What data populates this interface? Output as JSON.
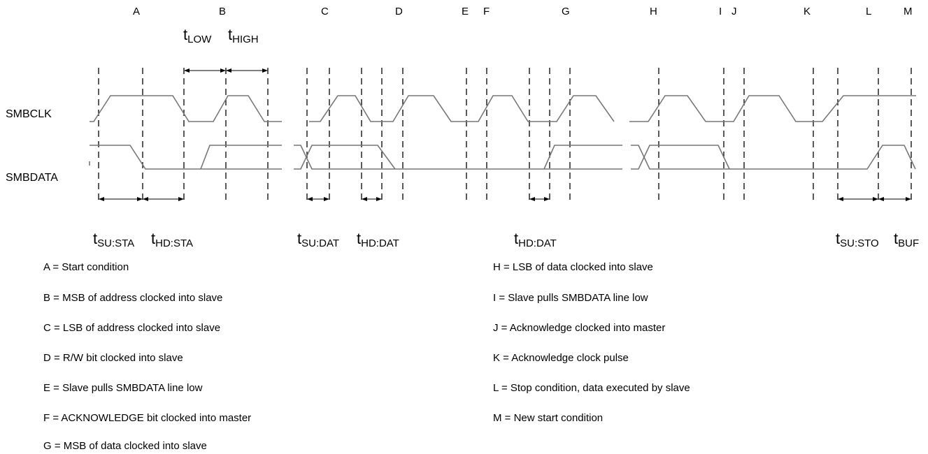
{
  "signals": {
    "clock": "SMBCLK",
    "data": "SMBDATA"
  },
  "event_letters": [
    "A",
    "B",
    "C",
    "D",
    "E",
    "F",
    "G",
    "H",
    "I",
    "J",
    "K",
    "L",
    "M"
  ],
  "timing_labels": [
    {
      "id": "t-low",
      "base": "t",
      "sub": "LOW"
    },
    {
      "id": "t-high",
      "base": "t",
      "sub": "HIGH"
    },
    {
      "id": "t-su-sta",
      "base": "t",
      "sub": "SU:STA"
    },
    {
      "id": "t-hd-sta",
      "base": "t",
      "sub": "HD:STA"
    },
    {
      "id": "t-su-dat",
      "base": "t",
      "sub": "SU:DAT"
    },
    {
      "id": "t-hd-dat-1",
      "base": "t",
      "sub": "HD:DAT"
    },
    {
      "id": "t-hd-dat-2",
      "base": "t",
      "sub": "HD:DAT"
    },
    {
      "id": "t-su-sto",
      "base": "t",
      "sub": "SU:STO"
    },
    {
      "id": "t-buf",
      "base": "t",
      "sub": "BUF"
    }
  ],
  "legend_left": [
    "A = Start condition",
    "B = MSB of address clocked into slave",
    "C = LSB of address clocked into slave",
    "D = R/W bit clocked into slave",
    "E = Slave pulls SMBDATA line low",
    "F = ACKNOWLEDGE bit clocked into master",
    "G = MSB of data clocked into slave"
  ],
  "legend_right": [
    "H = LSB of data clocked into slave",
    "I = Slave pulls SMBDATA line low",
    "J = Acknowledge clocked into master",
    "K = Acknowledge clock pulse",
    "L = Stop condition, data executed by slave",
    "M = New start condition"
  ],
  "colors": {
    "waveform": "#777777",
    "guides": "#000000",
    "text": "#000000"
  }
}
